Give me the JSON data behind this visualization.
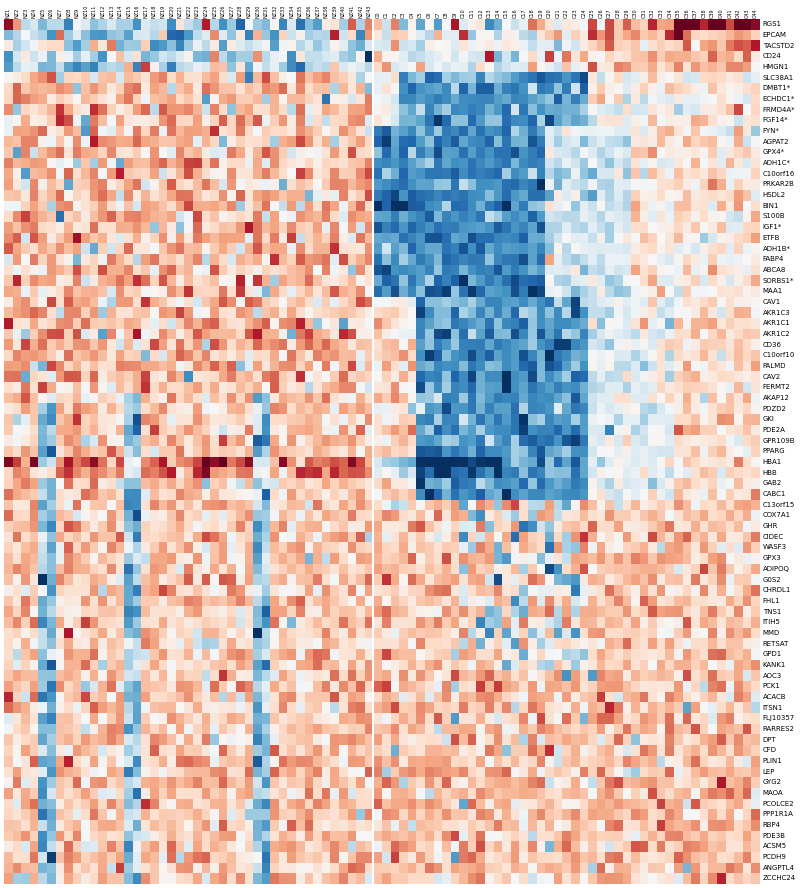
{
  "row_labels": [
    "RGS1",
    "EPCAM",
    "TACSTD2",
    "CD24",
    "HMGN1",
    "SLC38A1",
    "DMBT1*",
    "ECHDC1*",
    "FRMD4A*",
    "FGF14*",
    "FYN*",
    "AGPAT2",
    "GPX4*",
    "ADH1C*",
    "C10orf16",
    "PRKAR2B",
    "HSDL2",
    "BIN1",
    "S100B",
    "IGF1*",
    "ETFB",
    "ADH1B*",
    "FABP4",
    "ABCA8",
    "SORBS1*",
    "MAA1",
    "CAV1",
    "AKR1C3",
    "AKR1C1",
    "AKR1C2",
    "CD36",
    "C10orf10",
    "PALMD",
    "CAV2",
    "FERMT2",
    "AKAP12",
    "PDZD2",
    "GKI",
    "PDE2A",
    "GPR109B",
    "PPARG",
    "HBA1",
    "HBB",
    "GAB2",
    "CABC1",
    "C13orf15",
    "COX7A1",
    "GHR",
    "CIDEC",
    "WASF3",
    "GPX3",
    "ADIPOQ",
    "G0S2",
    "CHRDL1",
    "FHL1",
    "TNS1",
    "ITIH5",
    "MMD",
    "RETSAT",
    "GPD1",
    "KANK1",
    "AOC3",
    "PCK1",
    "ACACB",
    "ITSN1",
    "FLJ10357",
    "RARRES2",
    "DPT",
    "CFD",
    "PLIN1",
    "LEP",
    "GYG2",
    "MAOA",
    "PCOLCE2",
    "PPP1R1A",
    "RBP4",
    "PDE3B",
    "ACSM5",
    "PCDH9",
    "ANGPTL4",
    "ZCCHC24"
  ],
  "col_labels_nz": [
    "NZ1",
    "NZ2",
    "NZ3",
    "NZ4",
    "NZ5",
    "NZ6",
    "NZ7",
    "NZ8",
    "NZ9",
    "NZ10",
    "NZ11",
    "NZ12",
    "NZ13",
    "NZ14",
    "NZ15",
    "NZ16",
    "NZ17",
    "NZ18",
    "NZ19",
    "NZ20",
    "NZ21",
    "NZ22",
    "NZ23",
    "NZ24",
    "NZ25",
    "NZ26",
    "NZ27",
    "NZ28",
    "NZ29",
    "NZ30",
    "NZ31",
    "NZ32",
    "NZ33",
    "NZ34",
    "NZ35",
    "NZ36",
    "NZ37",
    "NZ38",
    "NZ39",
    "NZ40",
    "NZ41",
    "NZ42",
    "NZ43"
  ],
  "col_labels_c": [
    "C0",
    "C1",
    "C2",
    "C3",
    "C4",
    "C5",
    "C6",
    "C7",
    "C8",
    "C9",
    "C10",
    "C11",
    "C12",
    "C13",
    "C14",
    "C15",
    "C16",
    "C17",
    "C18",
    "C19",
    "C20",
    "C21",
    "C22",
    "C23",
    "C24",
    "C25",
    "C26",
    "C27",
    "C28",
    "C29",
    "C30",
    "C31",
    "C32",
    "C33",
    "C34",
    "C35",
    "C36",
    "C37",
    "C38",
    "C39",
    "C40",
    "C41",
    "C42",
    "C43",
    "C44"
  ],
  "figsize": [
    8.0,
    8.88
  ],
  "dpi": 100,
  "colormap": "RdBu_r",
  "vmin": -3,
  "vmax": 3,
  "label_fontsize": 5.0,
  "tick_fontsize": 3.5
}
